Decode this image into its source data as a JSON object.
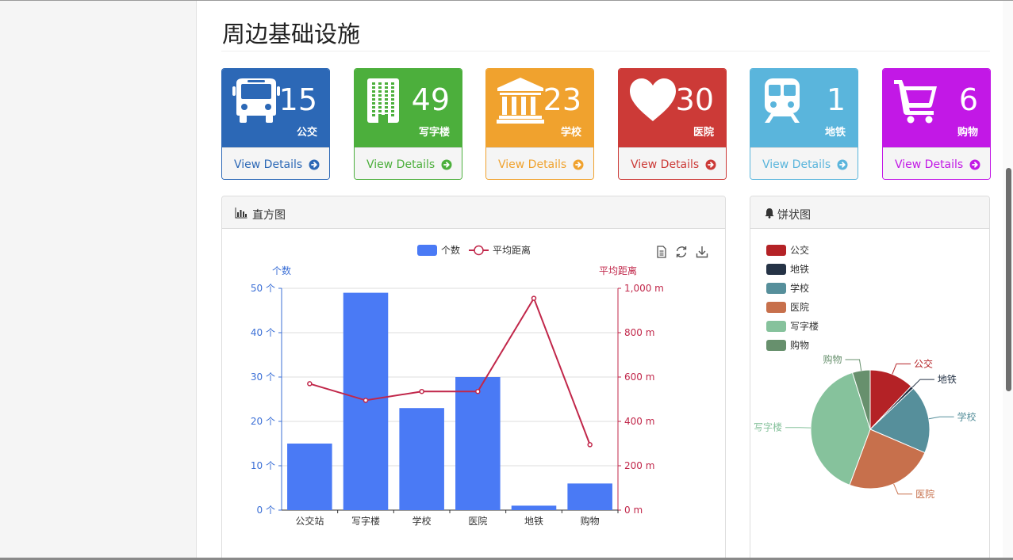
{
  "page": {
    "title": "周边基础设施"
  },
  "tiles": [
    {
      "count": "15",
      "label": "公交",
      "link": "View Details",
      "color": "#2c68b6",
      "icon": "bus-icon"
    },
    {
      "count": "49",
      "label": "写字楼",
      "link": "View Details",
      "color": "#4caf3c",
      "icon": "office-building-icon"
    },
    {
      "count": "23",
      "label": "学校",
      "link": "View Details",
      "color": "#f0a22e",
      "icon": "school-icon"
    },
    {
      "count": "30",
      "label": "医院",
      "link": "View Details",
      "color": "#cc3a37",
      "icon": "heart-icon"
    },
    {
      "count": "1",
      "label": "地铁",
      "link": "View Details",
      "color": "#5ab5dc",
      "icon": "subway-icon"
    },
    {
      "count": "6",
      "label": "购物",
      "link": "View Details",
      "color": "#c218e6",
      "icon": "shopping-cart-icon"
    }
  ],
  "bar_panel": {
    "title": "直方图",
    "icon": "bar-chart-icon",
    "tools": [
      "data-view-icon",
      "restore-icon",
      "download-icon"
    ]
  },
  "pie_panel": {
    "title": "饼状图",
    "icon": "bell-icon"
  },
  "chart_data": [
    {
      "type": "bar",
      "categories": [
        "公交站",
        "写字楼",
        "学校",
        "医院",
        "地铁",
        "购物"
      ],
      "series": [
        {
          "name": "个数",
          "type": "bar",
          "values": [
            15,
            49,
            23,
            30,
            1,
            6
          ],
          "color": "#4a7af5",
          "axis": "left"
        },
        {
          "name": "平均距离",
          "type": "line",
          "values": [
            570,
            495,
            535,
            535,
            955,
            295
          ],
          "color": "#c1274a",
          "axis": "right"
        }
      ],
      "y_left": {
        "label": "个数",
        "min": 0,
        "max": 50,
        "ticks": [
          "0 个",
          "10 个",
          "20 个",
          "30 个",
          "40 个",
          "50 个"
        ],
        "color": "#3b6fd6"
      },
      "y_right": {
        "label": "平均距离",
        "min": 0,
        "max": 1000,
        "ticks": [
          "0 m",
          "200 m",
          "400 m",
          "600 m",
          "800 m",
          "1,000 m"
        ],
        "color": "#c1274a"
      },
      "grid": true,
      "legend": "top-center"
    },
    {
      "type": "pie",
      "slices": [
        {
          "name": "公交",
          "value": 15,
          "color": "#b42226"
        },
        {
          "name": "地铁",
          "value": 1,
          "color": "#253346"
        },
        {
          "name": "学校",
          "value": 23,
          "color": "#568f9b"
        },
        {
          "name": "医院",
          "value": 30,
          "color": "#c7704c"
        },
        {
          "name": "写字楼",
          "value": 49,
          "color": "#86c29c"
        },
        {
          "name": "购物",
          "value": 6,
          "color": "#67906d"
        }
      ],
      "outer_labels": [
        "公交",
        "地铁",
        "学校",
        "医院",
        "写字楼",
        "购物"
      ],
      "legend": "top-left"
    }
  ]
}
